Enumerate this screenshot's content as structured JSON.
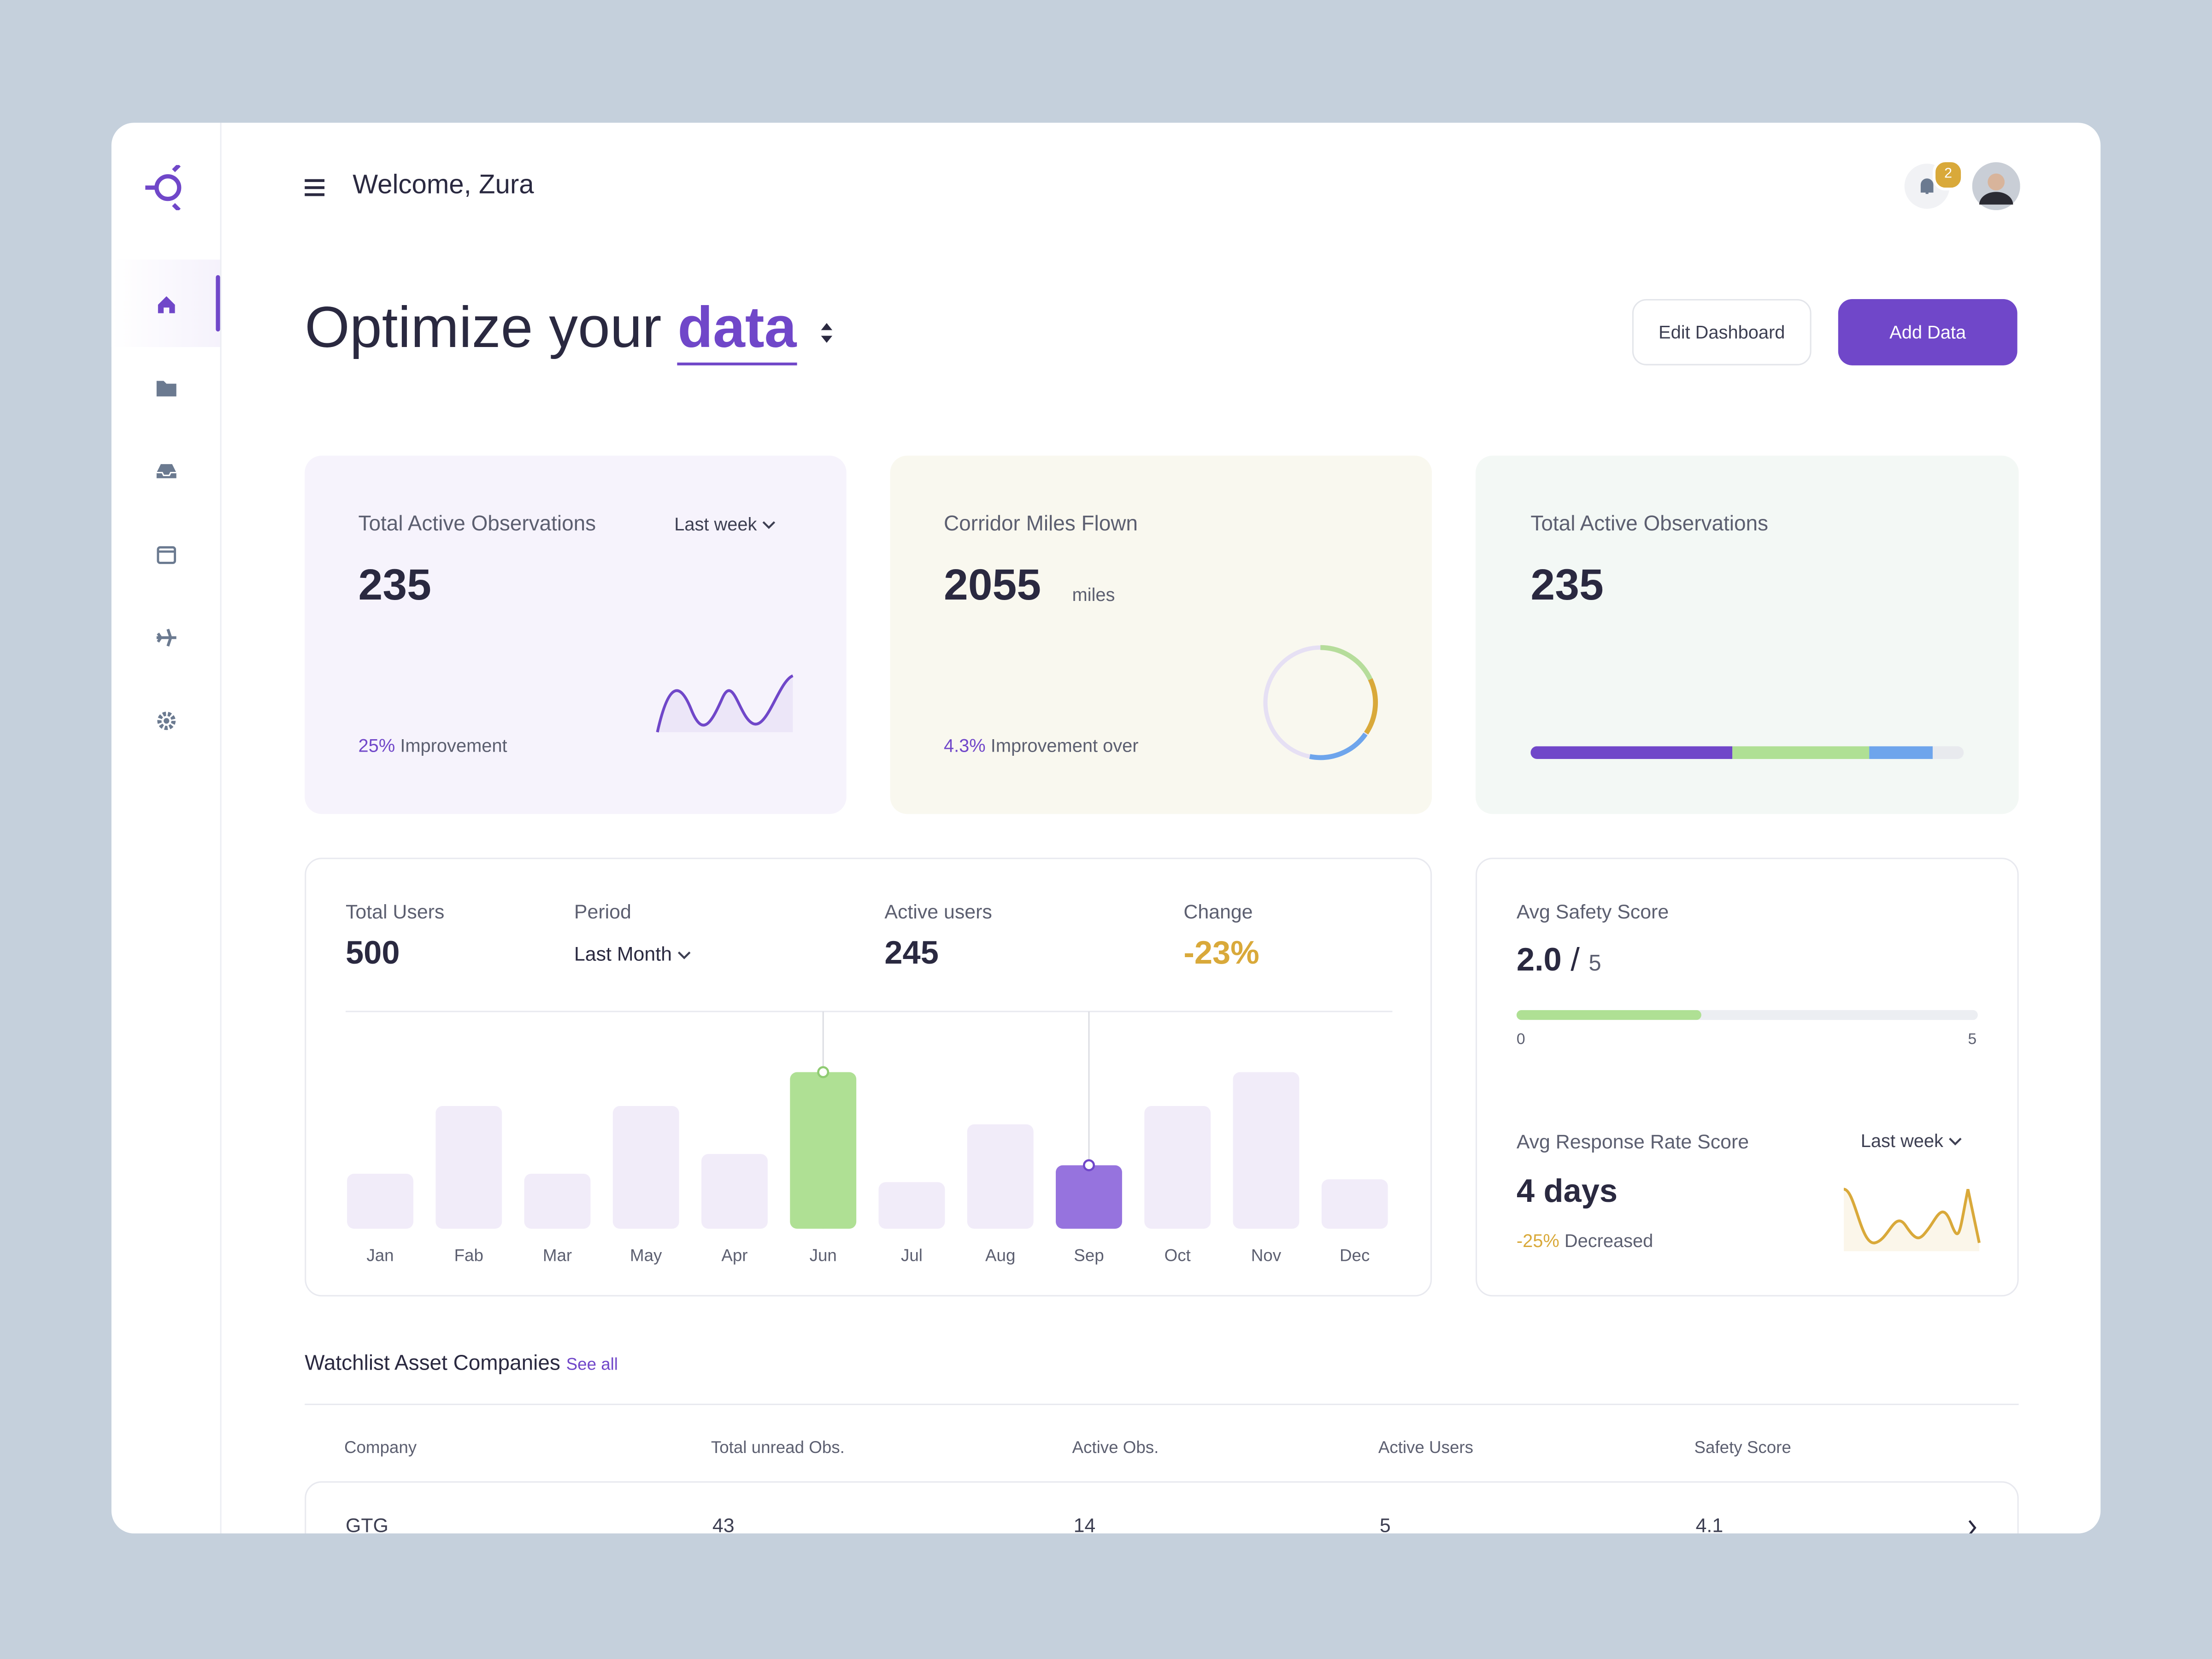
{
  "header": {
    "greeting": "Welcome, Zura",
    "notifications": 2
  },
  "hero": {
    "title_prefix": "Optimize your",
    "title_highlight": "data",
    "edit_button": "Edit Dashboard",
    "add_button": "Add Data"
  },
  "cards": [
    {
      "title": "Total Active Observations",
      "filter": "Last week",
      "value": 235,
      "change": "25%",
      "change_label": "Improvement"
    },
    {
      "title": "Corridor Miles Flown",
      "value": 2055,
      "unit": "miles",
      "change": "4.3%",
      "change_label": "Improvement over"
    },
    {
      "title": "Total Active Observations",
      "value": 235
    }
  ],
  "users_panel": {
    "stats": [
      {
        "label": "Total Users",
        "value": 500
      },
      {
        "label": "Period",
        "value": "Last Month"
      },
      {
        "label": "Active users",
        "value": 245
      },
      {
        "label": "Change",
        "value": "-23%"
      }
    ],
    "chart": {
      "type": "bar",
      "categories": [
        "Jan",
        "Fab",
        "Mar",
        "May",
        "Apr",
        "Jun",
        "Jul",
        "Aug",
        "Sep",
        "Oct",
        "Nov",
        "Dec"
      ],
      "values": [
        39,
        87,
        39,
        87,
        53,
        111,
        33,
        74,
        45,
        87,
        111,
        35
      ],
      "colors": [
        "#f1ecf9",
        "#f1ecf9",
        "#f1ecf9",
        "#f1ecf9",
        "#f1ecf9",
        "#afe094",
        "#f1ecf9",
        "#f1ecf9",
        "#9673de",
        "#f1ecf9",
        "#f1ecf9",
        "#f1ecf9"
      ]
    }
  },
  "safety": {
    "title": "Avg Safety Score",
    "score": {
      "value": 2,
      "label": "2.0"
    },
    "max": 5,
    "min": 0
  },
  "response": {
    "title": "Avg Response Rate Score",
    "filter": "Last week",
    "value": "4 days",
    "change": "-25%",
    "change_label": "Decreased"
  },
  "watchlist": {
    "title": "Watchlist Asset Companies",
    "link": "See all",
    "columns": [
      "Company",
      "Total unread Obs.",
      "Active Obs.",
      "Active Users",
      "Safety Score"
    ],
    "rows": [
      [
        "GTG",
        43,
        14,
        5,
        4.1
      ]
    ]
  }
}
